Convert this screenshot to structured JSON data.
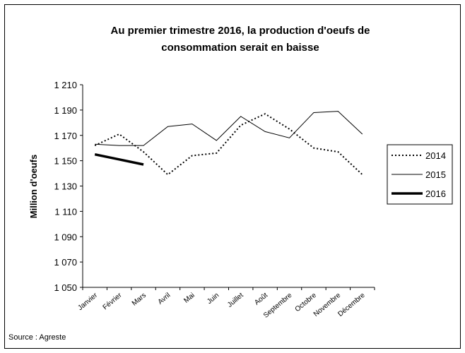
{
  "chart_data": {
    "type": "line",
    "title": [
      "Au premier trimestre 2016, la production d'oeufs de",
      "consommation serait  en baisse"
    ],
    "y_label": "Million d'oeufs",
    "source": "Source : Agreste",
    "categories": [
      "Janvier",
      "Février",
      "Mars",
      "Avril",
      "Mai",
      "Juin",
      "Juillet",
      "Août",
      "Septembre",
      "Octobre",
      "Novembre",
      "Décembre"
    ],
    "series": [
      {
        "name": "2014",
        "color": "#000000",
        "dash": "2,3",
        "width": 2,
        "values": [
          1162,
          1171,
          1157,
          1139,
          1154,
          1156,
          1178,
          1187,
          1175,
          1160,
          1157,
          1139
        ]
      },
      {
        "name": "2015",
        "color": "#000000",
        "dash": "none",
        "width": 1,
        "values": [
          1163,
          1162,
          1162,
          1177,
          1179,
          1166,
          1185,
          1173,
          1168,
          1188,
          1189,
          1171
        ]
      },
      {
        "name": "2016",
        "color": "#000000",
        "dash": "none",
        "width": 3.5,
        "values": [
          1155,
          1151,
          1147,
          null,
          null,
          null,
          null,
          null,
          null,
          null,
          null,
          null
        ]
      }
    ],
    "ylim": [
      1050,
      1210
    ],
    "yticks": [
      {
        "value": 1050,
        "label": "1 050"
      },
      {
        "value": 1070,
        "label": "1 070"
      },
      {
        "value": 1090,
        "label": "1 090"
      },
      {
        "value": 1110,
        "label": "1 110"
      },
      {
        "value": 1130,
        "label": "1 130"
      },
      {
        "value": 1150,
        "label": "1 150"
      },
      {
        "value": 1170,
        "label": "1 170"
      },
      {
        "value": 1190,
        "label": "1 190"
      },
      {
        "value": 1210,
        "label": "1 210"
      }
    ],
    "legend": "right"
  }
}
